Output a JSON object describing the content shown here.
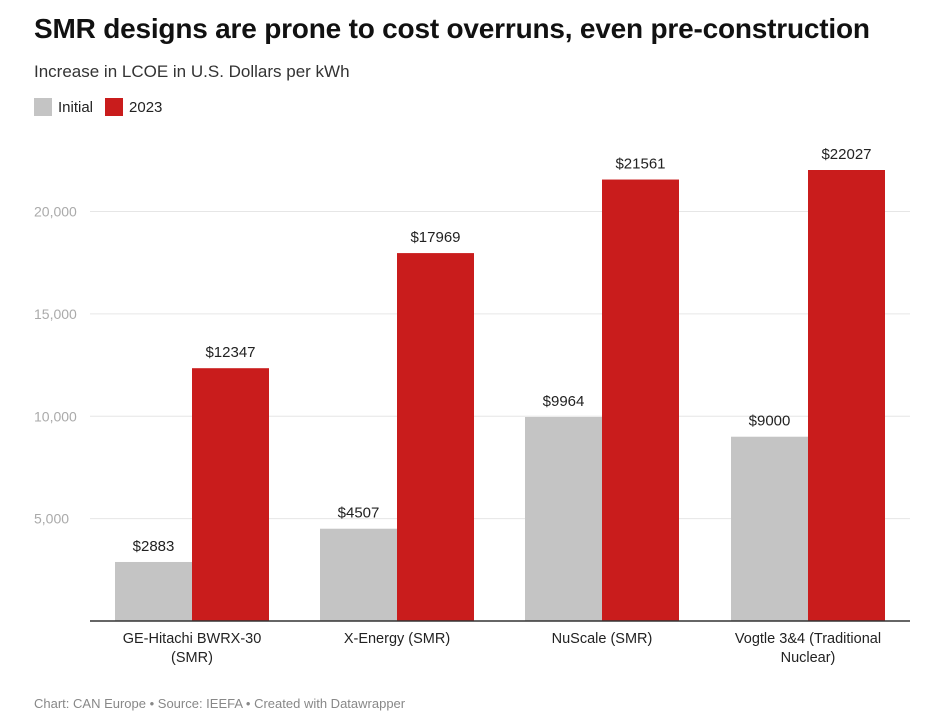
{
  "title": "SMR designs are prone to cost overruns, even pre-construction",
  "subtitle": "Increase in LCOE in U.S. Dollars per kWh",
  "footer": "Chart: CAN Europe • Source: IEEFA • Created with Datawrapper",
  "colors": {
    "initial": "#c4c4c4",
    "y2023": "#c91c1c",
    "grid": "#e6e6e6",
    "axis": "#333333"
  },
  "legend": [
    {
      "label": "Initial",
      "color": "#c4c4c4"
    },
    {
      "label": "2023",
      "color": "#c91c1c"
    }
  ],
  "chart_data": {
    "type": "bar",
    "title": "SMR designs are prone to cost overruns, even pre-construction",
    "subtitle": "Increase in LCOE in U.S. Dollars per kWh",
    "categories": [
      [
        "GE-Hitachi BWRX-30",
        "(SMR)"
      ],
      [
        "X-Energy (SMR)"
      ],
      [
        "NuScale (SMR)"
      ],
      [
        "Vogtle 3&4 (Traditional",
        "Nuclear)"
      ]
    ],
    "series": [
      {
        "name": "Initial",
        "values": [
          2883,
          4507,
          9964,
          9000
        ],
        "labels": [
          "$2883",
          "$4507",
          "$9964",
          "$9000"
        ]
      },
      {
        "name": "2023",
        "values": [
          12347,
          17969,
          21561,
          22027
        ],
        "labels": [
          "$12347",
          "$17969",
          "$21561",
          "$22027"
        ]
      }
    ],
    "yticks": [
      5000,
      10000,
      15000,
      20000
    ],
    "ytick_labels": [
      "5,000",
      "10,000",
      "15,000",
      "20,000"
    ],
    "ylim": [
      0,
      22027
    ],
    "grid": true,
    "legend_position": "top-left"
  }
}
